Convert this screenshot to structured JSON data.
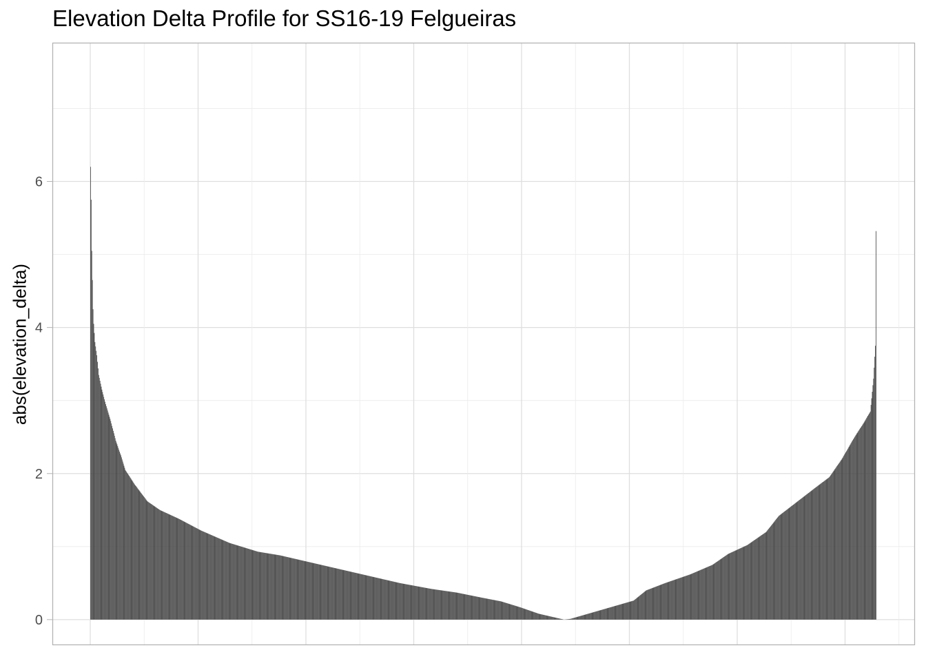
{
  "chart_data": {
    "type": "bar",
    "title": "Elevation Delta Profile for SS16-19 Felgueiras",
    "xlabel": "",
    "ylabel": "abs(elevation_delta)",
    "ylim": [
      -0.35,
      7.9
    ],
    "yticks": [
      0,
      2,
      4,
      6
    ],
    "x_tick_labels_shown": false,
    "grid": true,
    "theme": "light",
    "bar_color": "#474747",
    "grid_color": "#dedede",
    "border_color": "#b3b3b3",
    "profile_anchors": [
      [
        0,
        6.2
      ],
      [
        1,
        5.75
      ],
      [
        2,
        5.05
      ],
      [
        3,
        4.65
      ],
      [
        4,
        4.25
      ],
      [
        5,
        4.05
      ],
      [
        7,
        3.8
      ],
      [
        10,
        3.62
      ],
      [
        13,
        3.35
      ],
      [
        18,
        3.15
      ],
      [
        24,
        2.95
      ],
      [
        32,
        2.72
      ],
      [
        40,
        2.45
      ],
      [
        48,
        2.25
      ],
      [
        55,
        2.05
      ],
      [
        70,
        1.85
      ],
      [
        90,
        1.62
      ],
      [
        110,
        1.5
      ],
      [
        140,
        1.38
      ],
      [
        175,
        1.22
      ],
      [
        220,
        1.05
      ],
      [
        265,
        0.93
      ],
      [
        300,
        0.88
      ],
      [
        340,
        0.8
      ],
      [
        390,
        0.7
      ],
      [
        440,
        0.6
      ],
      [
        490,
        0.5
      ],
      [
        540,
        0.42
      ],
      [
        580,
        0.37
      ],
      [
        620,
        0.3
      ],
      [
        650,
        0.25
      ],
      [
        680,
        0.17
      ],
      [
        710,
        0.08
      ],
      [
        735,
        0.03
      ],
      [
        750,
        0.0
      ],
      [
        760,
        0.01
      ],
      [
        780,
        0.06
      ],
      [
        820,
        0.16
      ],
      [
        860,
        0.26
      ],
      [
        880,
        0.4
      ],
      [
        910,
        0.5
      ],
      [
        950,
        0.62
      ],
      [
        985,
        0.75
      ],
      [
        1010,
        0.9
      ],
      [
        1040,
        1.02
      ],
      [
        1070,
        1.2
      ],
      [
        1090,
        1.42
      ],
      [
        1120,
        1.62
      ],
      [
        1150,
        1.82
      ],
      [
        1170,
        1.95
      ],
      [
        1190,
        2.2
      ],
      [
        1210,
        2.5
      ],
      [
        1225,
        2.7
      ],
      [
        1235,
        2.85
      ],
      [
        1240,
        3.3
      ],
      [
        1243,
        3.75
      ],
      [
        1244,
        5.32
      ]
    ],
    "n_bars": 1245
  }
}
